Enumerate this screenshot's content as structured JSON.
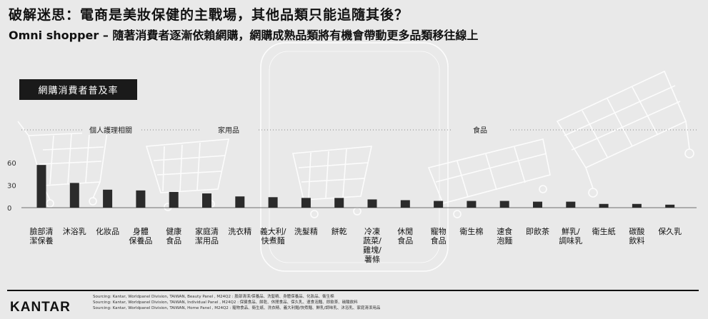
{
  "header": {
    "title": "破解迷思：電商是美妝保健的主戰場，其他品類只能追隨其後？",
    "subtitle": "Omni shopper – 隨著消費者逐漸依賴網購，網購成熟品類將有機會帶動更多品類移往線上"
  },
  "badge": "網購消費者普及率",
  "groups": [
    "個人護理相關",
    "家用品",
    "食品"
  ],
  "chart_data": {
    "type": "bar",
    "title": "網購消費者普及率",
    "categories": [
      "臉部清\n潔保養",
      "沐浴乳",
      "化妝品",
      "身體\n保養品",
      "健康\n食品",
      "家庭清\n潔用品",
      "洗衣精",
      "義大利/\n快煮麵",
      "洗髮精",
      "餅乾",
      "冷凍\n蔬菜/\n雞塊/\n薯條",
      "休閒\n食品",
      "寵物\n食品",
      "衛生棉",
      "速食\n泡麵",
      "即飲茶",
      "鮮乳/\n調味乳",
      "衛生紙",
      "碳酸\n飲料",
      "保久乳"
    ],
    "values": [
      57,
      33,
      24,
      23,
      21,
      19,
      15,
      14,
      13,
      13,
      11,
      10,
      9,
      9,
      9,
      8,
      8,
      5,
      5,
      4
    ],
    "ylim": [
      0,
      72
    ],
    "yticks": [
      0,
      30,
      60
    ],
    "color": "#2b2b2b"
  },
  "footer": {
    "logo": "KANTAR",
    "sources": [
      "Sourcing: Kantar, Worldpanel Division, TAIWAN, Beauty Panel , M24Q2 : 臉部清潔/保養品、洗髮精、身體保養品、化妝品、衛生棉",
      "Sourcing: Kantar, Worldpanel Division, TAIWAN, Individual Panel , M24Q2 : 保健食品、餅乾、休閒食品、保久乳、速食泡麵、即飲茶、碳酸飲料",
      "Sourcing: Kantar, Worldpanel Division, TAIWAN, Home Panel , M24Q2 : 寵物食品、衛生紙、洗衣精、義大利麵/快煮麵、鮮乳/調味乳、沐浴乳、家庭清潔用品"
    ]
  }
}
